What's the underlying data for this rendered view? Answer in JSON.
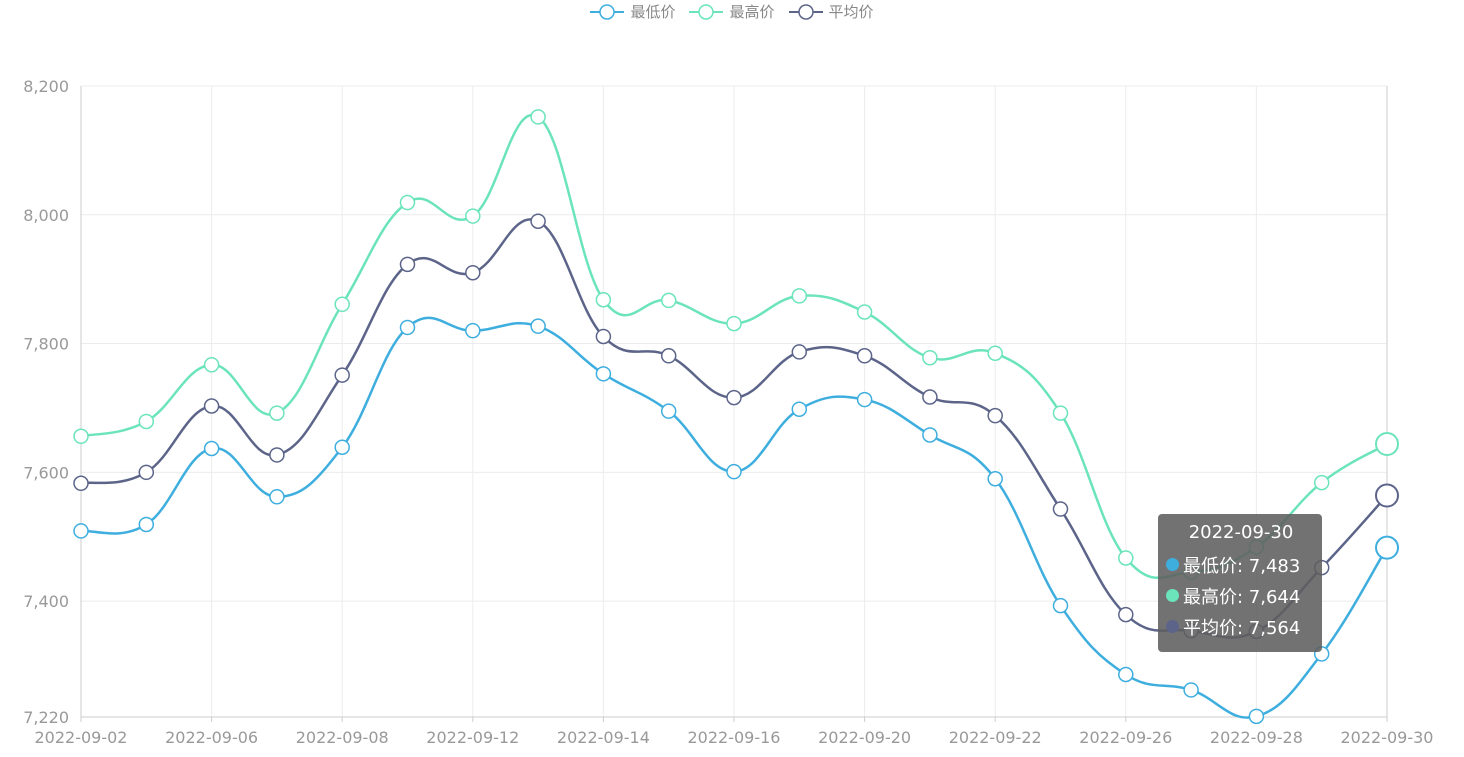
{
  "legend": [
    {
      "name": "最低价",
      "color": "#3eaedf"
    },
    {
      "name": "最高价",
      "color": "#6be4bc"
    },
    {
      "name": "平均价",
      "color": "#5c6589"
    }
  ],
  "tooltip": {
    "title": "2022-09-30",
    "rows": [
      {
        "label": "最低价: 7,483",
        "color": "#3eaedf"
      },
      {
        "label": "最高价: 7,644",
        "color": "#6be4bc"
      },
      {
        "label": "平均价: 7,564",
        "color": "#5c6589"
      }
    ]
  },
  "chart_data": {
    "type": "line",
    "smooth": true,
    "x": [
      "2022-09-02",
      "2022-09-05",
      "2022-09-06",
      "2022-09-07",
      "2022-09-08",
      "2022-09-09",
      "2022-09-12",
      "2022-09-13",
      "2022-09-14",
      "2022-09-15",
      "2022-09-16",
      "2022-09-19",
      "2022-09-20",
      "2022-09-21",
      "2022-09-22",
      "2022-09-23",
      "2022-09-26",
      "2022-09-27",
      "2022-09-28",
      "2022-09-29",
      "2022-09-30"
    ],
    "x_tick_labels": [
      "2022-09-02",
      "2022-09-06",
      "2022-09-08",
      "2022-09-12",
      "2022-09-14",
      "2022-09-16",
      "2022-09-20",
      "2022-09-22",
      "2022-09-26",
      "2022-09-28",
      "2022-09-30"
    ],
    "x_tick_every": 2,
    "ylim": [
      7220,
      8200
    ],
    "y_ticks": [
      7220,
      7400,
      7600,
      7800,
      8000,
      8200
    ],
    "y_tick_labels": [
      "7,220",
      "7,400",
      "7,600",
      "7,800",
      "8,000",
      "8,200"
    ],
    "grid": true,
    "legend_position": "top-center",
    "highlight_index": 20,
    "series": [
      {
        "name": "最低价",
        "color": "#3eaedf",
        "values": [
          7509,
          7519,
          7637,
          7562,
          7639,
          7825,
          7820,
          7827,
          7753,
          7695,
          7601,
          7698,
          7713,
          7658,
          7590,
          7393,
          7286,
          7262,
          7221,
          7318,
          7483
        ]
      },
      {
        "name": "最高价",
        "color": "#6be4bc",
        "values": [
          7656,
          7679,
          7767,
          7692,
          7861,
          8019,
          7998,
          8152,
          7868,
          7867,
          7831,
          7874,
          7849,
          7778,
          7785,
          7692,
          7467,
          7445,
          7484,
          7584,
          7644
        ]
      },
      {
        "name": "平均价",
        "color": "#5c6589",
        "values": [
          7583,
          7600,
          7703,
          7627,
          7751,
          7923,
          7910,
          7990,
          7811,
          7781,
          7716,
          7787,
          7781,
          7717,
          7688,
          7543,
          7379,
          7354,
          7353,
          7452,
          7564
        ]
      }
    ]
  }
}
